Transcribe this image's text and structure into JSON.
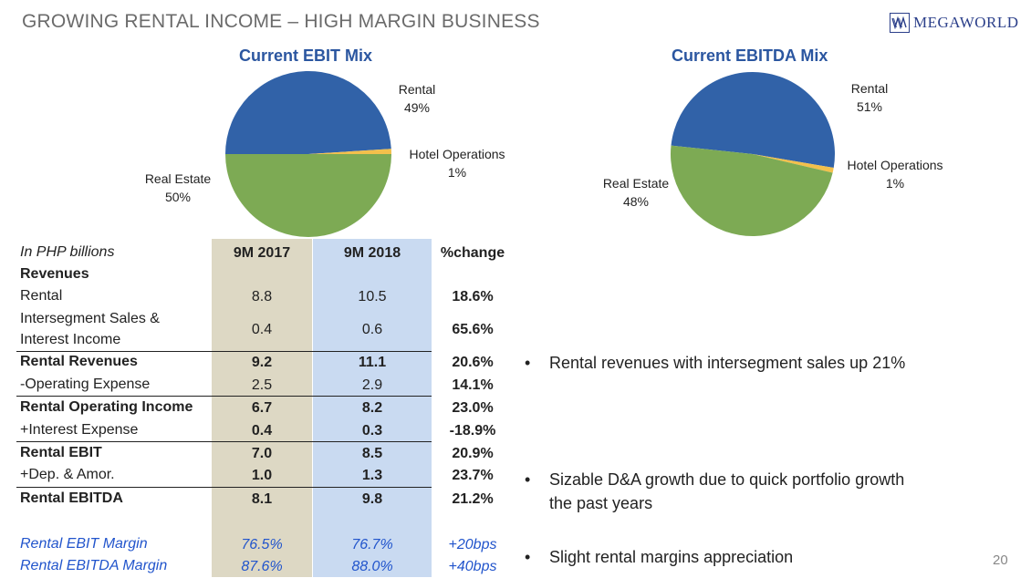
{
  "page": {
    "title": "GROWING RENTAL INCOME – HIGH MARGIN BUSINESS",
    "logo_text": "MEGAWORLD",
    "page_number": "20"
  },
  "chart_data": [
    {
      "type": "pie",
      "title": "Current EBIT Mix",
      "categories": [
        "Rental",
        "Hotel Operations",
        "Real Estate"
      ],
      "values": [
        49,
        1,
        50
      ],
      "value_labels": [
        "49%",
        "1%",
        "50%"
      ],
      "colors": [
        "#3162a8",
        "#f2c04c",
        "#7daa54"
      ]
    },
    {
      "type": "pie",
      "title": "Current EBITDA Mix",
      "categories": [
        "Rental",
        "Hotel Operations",
        "Real Estate"
      ],
      "values": [
        51,
        1,
        48
      ],
      "value_labels": [
        "51%",
        "1%",
        "48%"
      ],
      "colors": [
        "#3162a8",
        "#f2c04c",
        "#7daa54"
      ]
    }
  ],
  "table": {
    "unit_label": "In PHP billions",
    "col1": "9M 2017",
    "col2": "9M 2018",
    "col3": "%change",
    "section": "Revenues",
    "rows": [
      {
        "label": "Rental",
        "v1": "8.8",
        "v2": "10.5",
        "chg": "18.6%"
      },
      {
        "label1": "Intersegment Sales &",
        "label2": "Interest Income",
        "v1": "0.4",
        "v2": "0.6",
        "chg": "65.6%"
      },
      {
        "label": "Rental Revenues",
        "v1": "9.2",
        "v2": "11.1",
        "chg": "20.6%"
      },
      {
        "label": "-Operating Expense",
        "v1": "2.5",
        "v2": "2.9",
        "chg": "14.1%"
      },
      {
        "label": "Rental Operating Income",
        "v1": "6.7",
        "v2": "8.2",
        "chg": "23.0%"
      },
      {
        "label": "+Interest Expense",
        "v1": "0.4",
        "v2": "0.3",
        "chg": "-18.9%"
      },
      {
        "label": "Rental EBIT",
        "v1": "7.0",
        "v2": "8.5",
        "chg": "20.9%"
      },
      {
        "label": "+Dep. & Amor.",
        "v1": "1.0",
        "v2": "1.3",
        "chg": "23.7%"
      },
      {
        "label": "Rental EBITDA",
        "v1": "8.1",
        "v2": "9.8",
        "chg": "21.2%"
      },
      {
        "label": "Rental EBIT Margin",
        "v1": "76.5%",
        "v2": "76.7%",
        "chg": "+20bps"
      },
      {
        "label": "Rental EBITDA Margin",
        "v1": "87.6%",
        "v2": "88.0%",
        "chg": "+40bps"
      }
    ]
  },
  "bullets": [
    {
      "line1": "Rental revenues with intersegment sales up 21%"
    },
    {
      "line1": "Sizable D&A growth due to quick portfolio growth",
      "line2": "the past years"
    },
    {
      "line1": "Slight rental margins appreciation"
    }
  ],
  "colors": {
    "col1_bg": "#ddd8c4",
    "col2_bg": "#c9daf1",
    "title_gray": "#6b6b6b",
    "chart_title_blue": "#2b56a0",
    "margin_blue": "#2255cc"
  }
}
